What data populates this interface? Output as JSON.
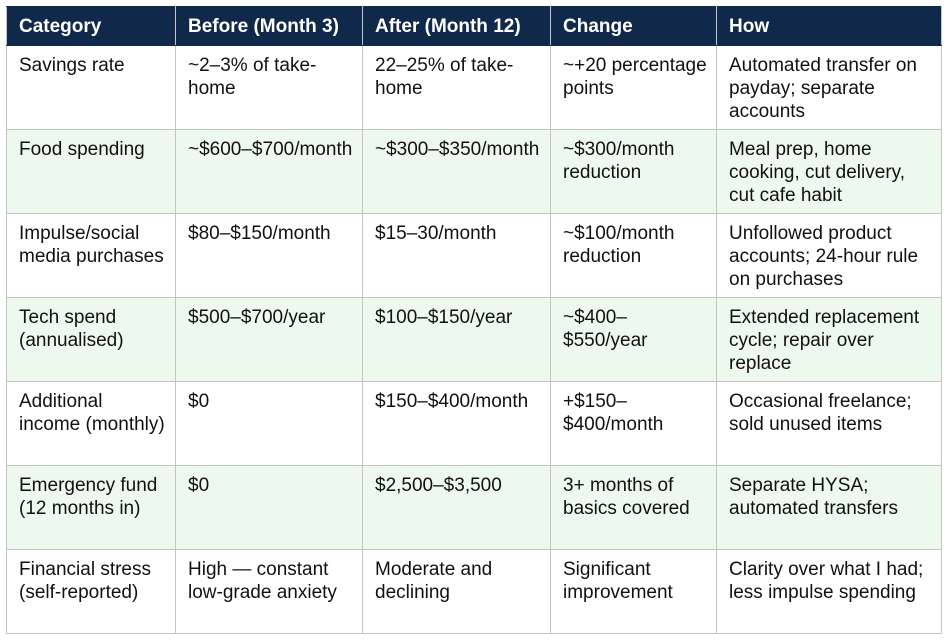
{
  "table": {
    "header": [
      "Category",
      "Before (Month 3)",
      "After (Month 12)",
      "Change",
      "How"
    ],
    "rows": [
      [
        "Savings rate",
        "~2–3% of take-home",
        "22–25% of take-home",
        "~+20 percentage points",
        "Automated transfer on payday; separate accounts"
      ],
      [
        "Food spending",
        "~$600–$700/month",
        "~$300–$350/month",
        "~$300/month reduction",
        "Meal prep, home cooking, cut delivery, cut cafe habit"
      ],
      [
        "Impulse/social media purchases",
        "$80–$150/month",
        "$15–30/month",
        "~$100/month reduction",
        "Unfollowed product accounts; 24-hour rule on purchases"
      ],
      [
        "Tech spend (annualised)",
        "$500–$700/year",
        "$100–$150/year",
        "~$400–$550/year",
        "Extended replacement cycle; repair over replace"
      ],
      [
        "Additional income (monthly)",
        "$0",
        "$150–$400/month",
        "+$150–$400/month",
        "Occasional freelance; sold unused items"
      ],
      [
        "Emergency fund (12 months in)",
        "$0",
        "$2,500–$3,500",
        "3+ months of basics covered",
        "Separate HYSA; automated transfers"
      ],
      [
        "Financial stress (self-reported)",
        "High — constant low-grade anxiety",
        "Moderate and declining",
        "Significant improvement",
        "Clarity over what I had; less impulse spending"
      ]
    ]
  }
}
